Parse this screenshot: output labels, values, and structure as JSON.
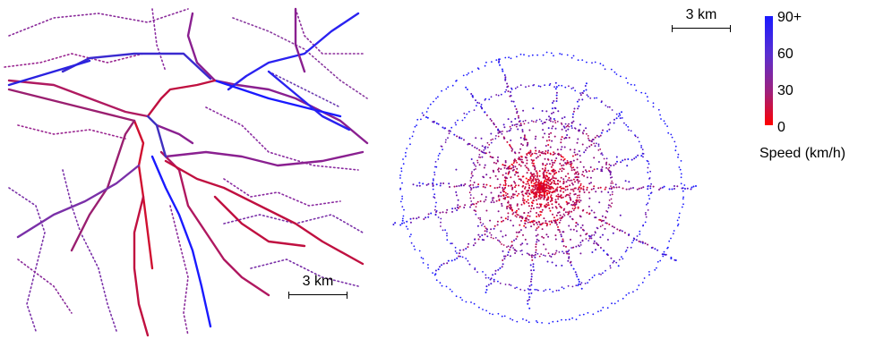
{
  "colors": {
    "slow": "#ff0000",
    "fast": "#1a1aff"
  },
  "left_map": {
    "scalebar_label": "3 km"
  },
  "right_map": {
    "scalebar_label": "3 km"
  },
  "legend": {
    "ticks": [
      "90+",
      "60",
      "30",
      "0"
    ],
    "title": "Speed (km/h)"
  }
}
